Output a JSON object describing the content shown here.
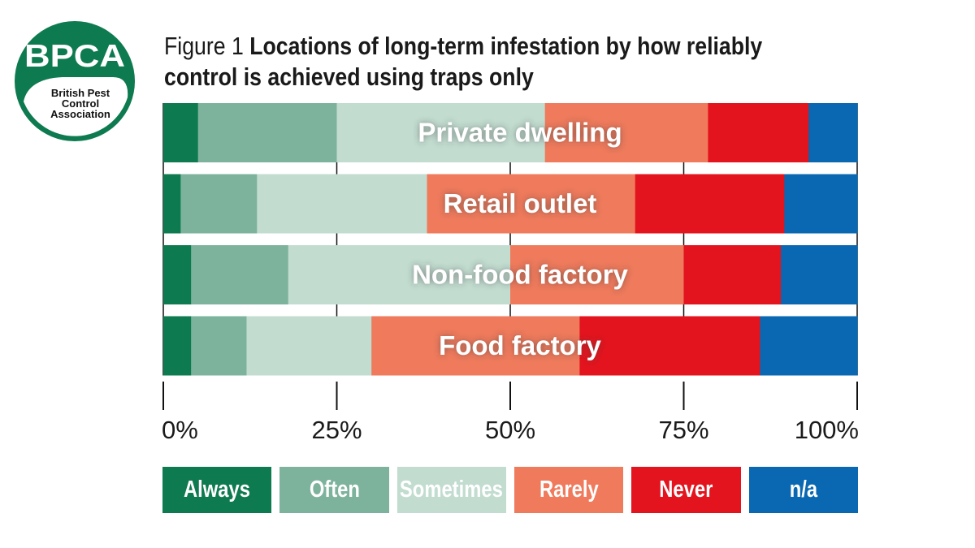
{
  "logo": {
    "wordmark": "BPCA",
    "line1": "British Pest",
    "line2": "Control",
    "line3": "Association",
    "colors": {
      "green": "#0e7a4f",
      "light": "#ffffff"
    }
  },
  "title": {
    "prefix": "Figure 1",
    "text": "Locations of long-term infestation by how reliably control is achieved using traps only"
  },
  "chart_data": {
    "type": "bar",
    "orientation": "horizontal",
    "stacked": true,
    "normalized_percent": true,
    "categories": [
      "Private dwelling",
      "Retail outlet",
      "Non-food factory",
      "Food factory"
    ],
    "series": [
      {
        "name": "Always",
        "color": "#0e7a4f",
        "values": [
          5,
          2.5,
          4,
          4
        ]
      },
      {
        "name": "Often",
        "color": "#7db39c",
        "values": [
          20,
          11,
          14,
          8
        ]
      },
      {
        "name": "Sometimes",
        "color": "#c2dcd0",
        "values": [
          30,
          24.5,
          32,
          18
        ]
      },
      {
        "name": "Rarely",
        "color": "#ef7a5c",
        "values": [
          23.5,
          30,
          25,
          30
        ]
      },
      {
        "name": "Never",
        "color": "#e3141e",
        "values": [
          14.5,
          21.5,
          14,
          26
        ]
      },
      {
        "name": "n/a",
        "color": "#0a67b1",
        "values": [
          7,
          10.5,
          11,
          14
        ]
      }
    ],
    "xlim": [
      0,
      100
    ],
    "xticks": [
      0,
      25,
      50,
      75,
      100
    ],
    "xtick_labels": [
      "0%",
      "25%",
      "50%",
      "75%",
      "100%"
    ],
    "grid": true,
    "legend_position": "bottom"
  }
}
